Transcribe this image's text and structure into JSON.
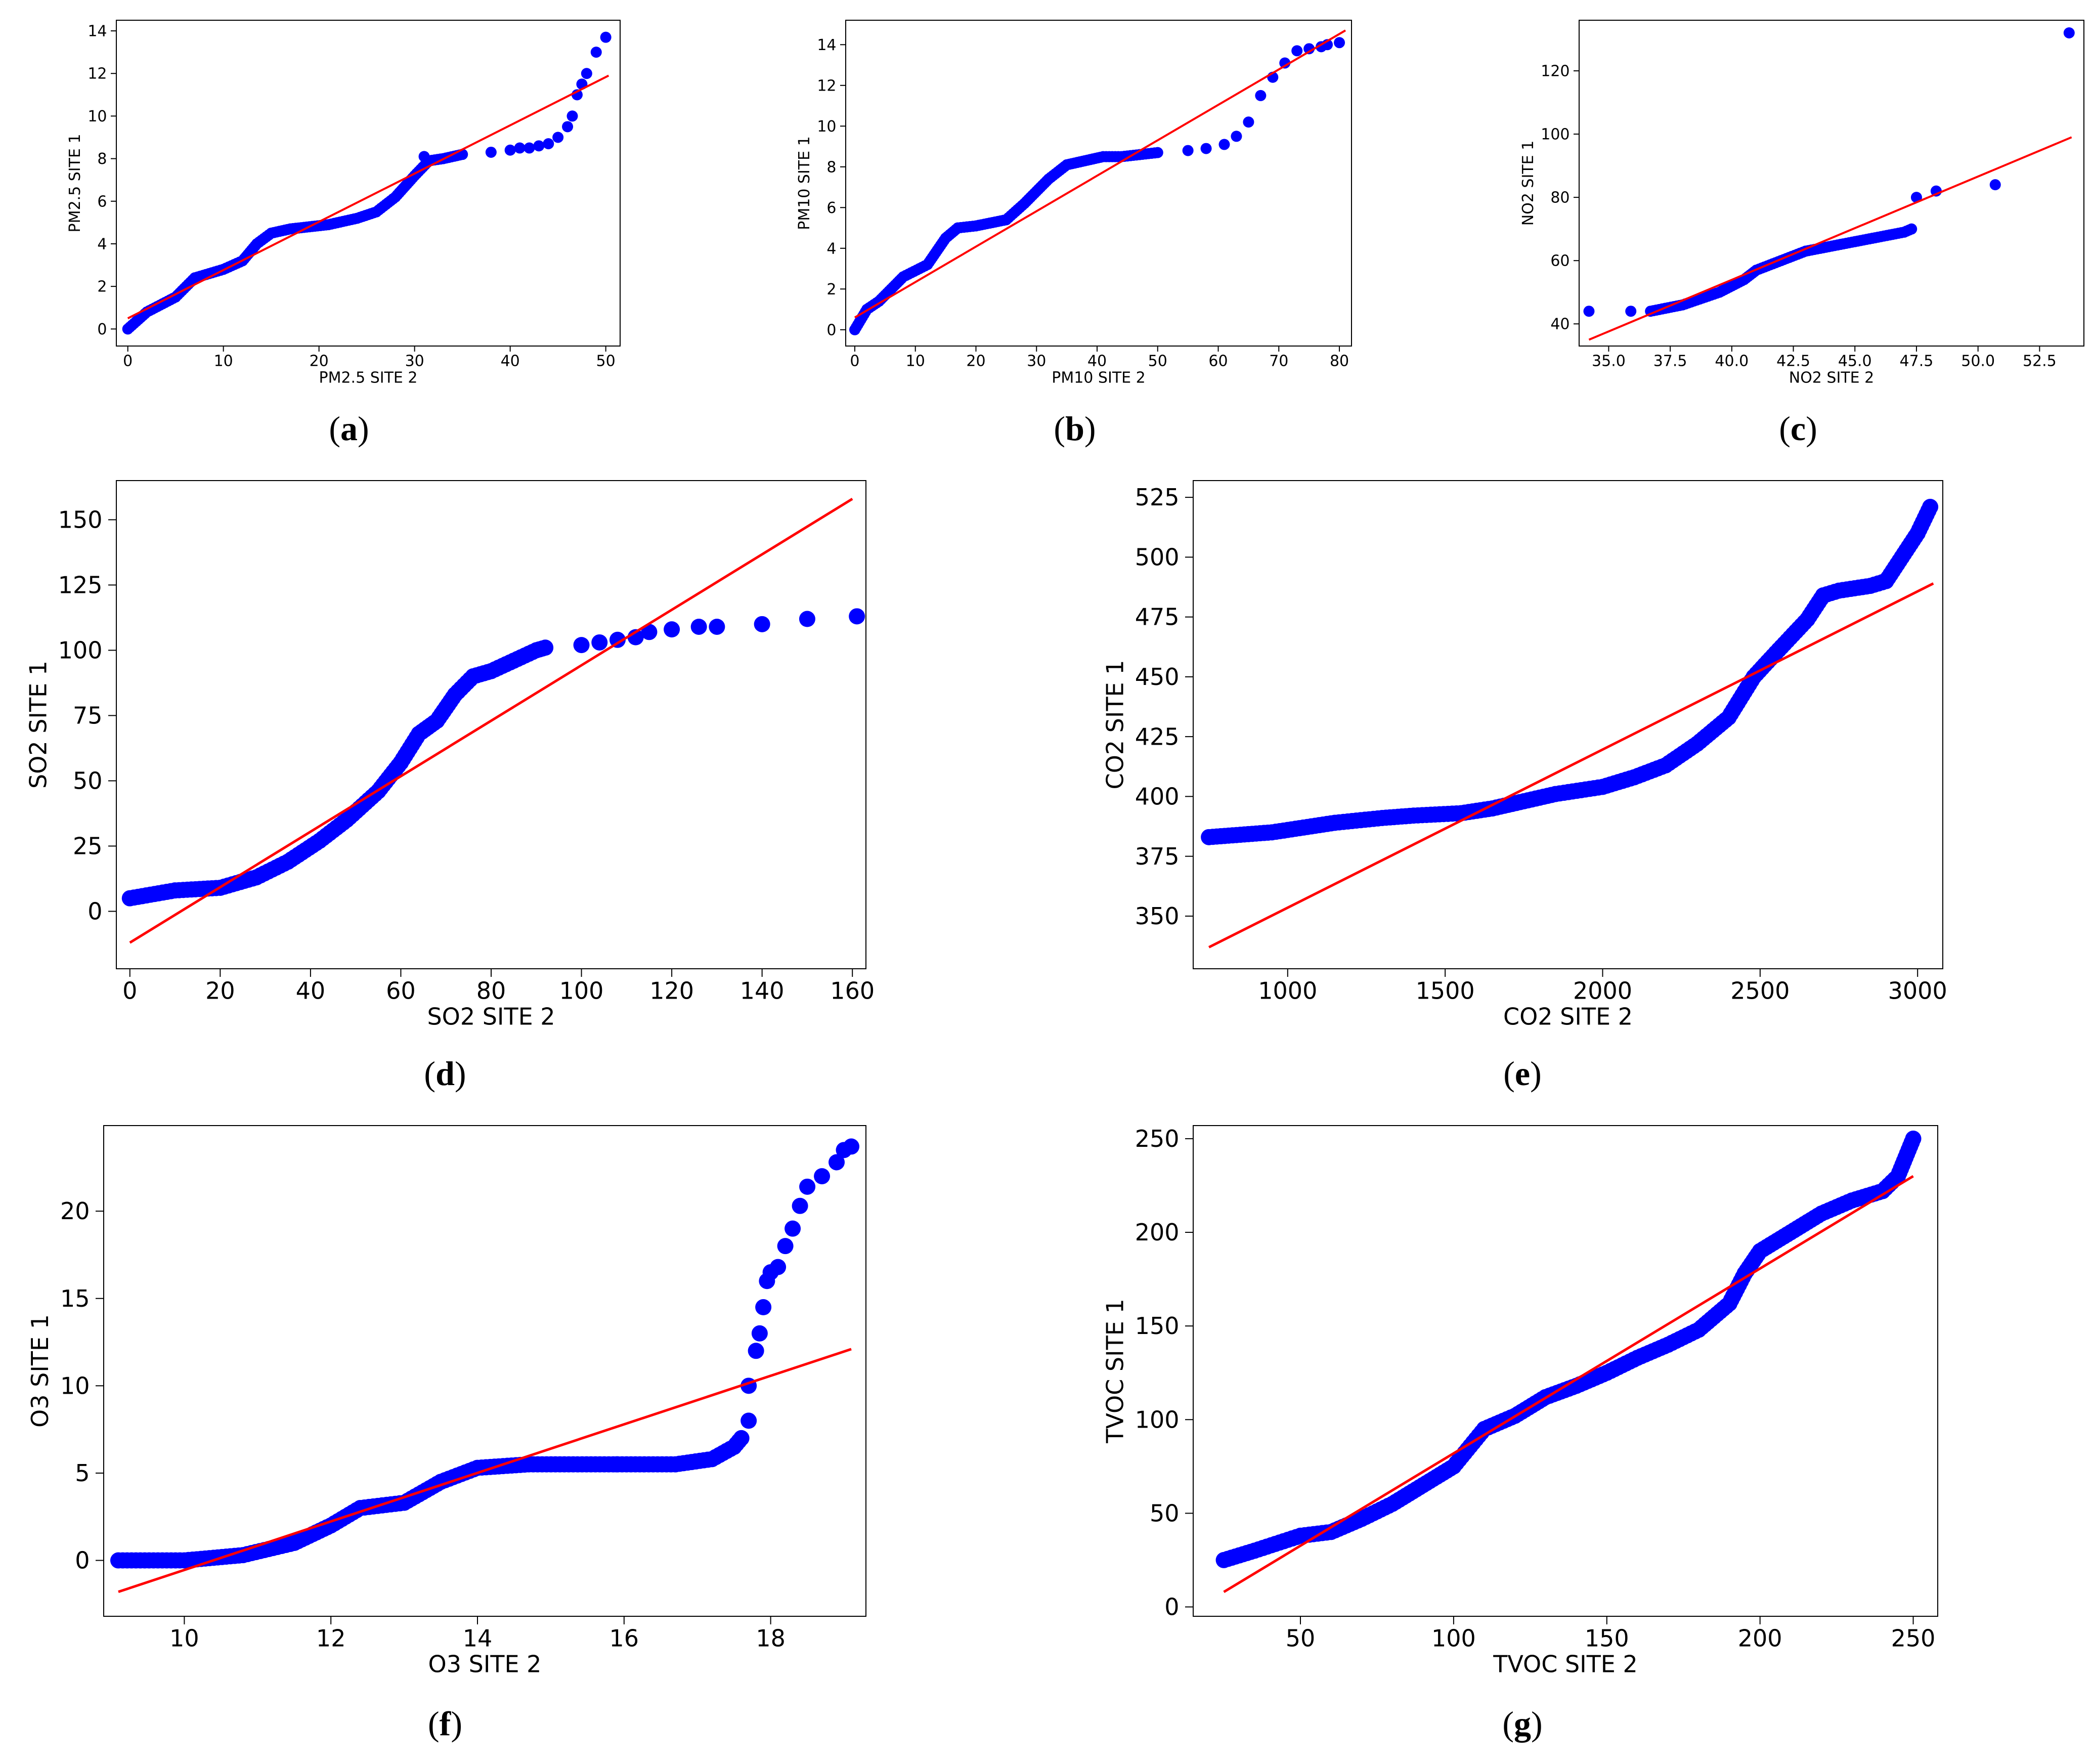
{
  "chart_data": [
    {
      "id": "a",
      "panel_label": "a",
      "type": "scatter",
      "xlabel": "PM2.5 SITE 2",
      "ylabel": "PM2.5 SITE 1",
      "xlim": [
        -1.2,
        51.5
      ],
      "ylim": [
        -0.8,
        14.5
      ],
      "xticks": [
        0,
        10,
        20,
        30,
        40,
        50
      ],
      "yticks": [
        0,
        2,
        4,
        6,
        8,
        10,
        12,
        14
      ],
      "fit_line": [
        [
          0,
          0.5
        ],
        [
          50.3,
          11.9
        ]
      ],
      "curve": [
        [
          0,
          0
        ],
        [
          2,
          0.8
        ],
        [
          5,
          1.5
        ],
        [
          7,
          2.4
        ],
        [
          10,
          2.8
        ],
        [
          12,
          3.2
        ],
        [
          13.5,
          4
        ],
        [
          15,
          4.5
        ],
        [
          17,
          4.7
        ],
        [
          19,
          4.8
        ],
        [
          21,
          4.9
        ],
        [
          24,
          5.2
        ],
        [
          26,
          5.5
        ],
        [
          28,
          6.2
        ],
        [
          30,
          7.2
        ],
        [
          31.5,
          7.9
        ],
        [
          33,
          8
        ],
        [
          35,
          8.2
        ]
      ],
      "scatter": [
        [
          31,
          8.1
        ],
        [
          35,
          8.2
        ],
        [
          38,
          8.3
        ],
        [
          40,
          8.4
        ],
        [
          41,
          8.5
        ],
        [
          42,
          8.5
        ],
        [
          43,
          8.6
        ],
        [
          44,
          8.7
        ],
        [
          45,
          9.0
        ],
        [
          46,
          9.5
        ],
        [
          46.5,
          10
        ],
        [
          47,
          11
        ],
        [
          47.5,
          11.5
        ],
        [
          48,
          12
        ],
        [
          49,
          13
        ],
        [
          50,
          13.7
        ]
      ]
    },
    {
      "id": "b",
      "panel_label": "b",
      "type": "scatter",
      "xlabel": "PM10 SITE 2",
      "ylabel": "PM10 SITE 1",
      "xlim": [
        -1.5,
        82
      ],
      "ylim": [
        -0.8,
        15.2
      ],
      "xticks": [
        0,
        10,
        20,
        30,
        40,
        50,
        60,
        70,
        80
      ],
      "yticks": [
        0,
        2,
        4,
        6,
        8,
        10,
        12,
        14
      ],
      "fit_line": [
        [
          0,
          0.6
        ],
        [
          81,
          14.7
        ]
      ],
      "curve": [
        [
          0,
          0
        ],
        [
          2,
          1
        ],
        [
          4,
          1.4
        ],
        [
          6,
          2
        ],
        [
          8,
          2.6
        ],
        [
          12,
          3.2
        ],
        [
          15,
          4.5
        ],
        [
          17,
          5
        ],
        [
          20,
          5.1
        ],
        [
          25,
          5.4
        ],
        [
          28,
          6.2
        ],
        [
          32,
          7.4
        ],
        [
          35,
          8.1
        ],
        [
          38,
          8.3
        ],
        [
          41,
          8.5
        ],
        [
          44,
          8.5
        ],
        [
          47,
          8.6
        ],
        [
          50,
          8.7
        ]
      ],
      "scatter": [
        [
          55,
          8.8
        ],
        [
          58,
          8.9
        ],
        [
          61,
          9.1
        ],
        [
          63,
          9.5
        ],
        [
          65,
          10.2
        ],
        [
          67,
          11.5
        ],
        [
          69,
          12.4
        ],
        [
          71,
          13.1
        ],
        [
          73,
          13.7
        ],
        [
          75,
          13.8
        ],
        [
          77,
          13.9
        ],
        [
          78,
          14.0
        ],
        [
          80,
          14.1
        ]
      ]
    },
    {
      "id": "c",
      "panel_label": "c",
      "type": "scatter",
      "xlabel": "NO2 SITE 2",
      "ylabel": "NO2 SITE 1",
      "xlim": [
        33.8,
        54.3
      ],
      "ylim": [
        33,
        136
      ],
      "xticks": [
        "35.0",
        "37.5",
        "40.0",
        "42.5",
        "45.0",
        "47.5",
        "50.0",
        "52.5"
      ],
      "yticks": [
        40,
        60,
        80,
        100,
        120
      ],
      "fit_line": [
        [
          34.2,
          35
        ],
        [
          53.8,
          99
        ]
      ],
      "curve": [
        [
          36.7,
          44
        ],
        [
          38,
          46
        ],
        [
          39.5,
          50
        ],
        [
          40.5,
          54
        ],
        [
          41,
          57
        ],
        [
          42,
          60
        ],
        [
          43,
          63
        ],
        [
          45,
          66
        ],
        [
          47,
          69
        ],
        [
          47.3,
          70
        ]
      ],
      "scatter": [
        [
          34.2,
          44
        ],
        [
          35.9,
          44
        ],
        [
          47.5,
          80
        ],
        [
          48.3,
          82
        ],
        [
          50.7,
          84
        ],
        [
          53.7,
          132
        ]
      ]
    },
    {
      "id": "d",
      "panel_label": "d",
      "type": "scatter",
      "xlabel": "SO2 SITE 2",
      "ylabel": "SO2 SITE 1",
      "xlim": [
        -3,
        163
      ],
      "ylim": [
        -22,
        165
      ],
      "xticks": [
        0,
        20,
        40,
        60,
        80,
        100,
        120,
        140,
        160
      ],
      "yticks": [
        0,
        25,
        50,
        75,
        100,
        125,
        150
      ],
      "fit_line": [
        [
          0,
          -12
        ],
        [
          160,
          158
        ]
      ],
      "curve": [
        [
          0,
          5
        ],
        [
          10,
          8
        ],
        [
          20,
          9
        ],
        [
          28,
          13
        ],
        [
          35,
          19
        ],
        [
          42,
          27
        ],
        [
          48,
          35
        ],
        [
          55,
          46
        ],
        [
          60,
          57
        ],
        [
          64,
          68
        ],
        [
          68,
          73
        ],
        [
          72,
          83
        ],
        [
          76,
          90
        ],
        [
          80,
          92
        ],
        [
          85,
          96
        ],
        [
          90,
          100
        ],
        [
          92,
          101
        ]
      ],
      "scatter": [
        [
          100,
          102
        ],
        [
          104,
          103
        ],
        [
          108,
          104
        ],
        [
          112,
          105
        ],
        [
          115,
          107
        ],
        [
          120,
          108
        ],
        [
          126,
          109
        ],
        [
          130,
          109
        ],
        [
          140,
          110
        ],
        [
          150,
          112
        ],
        [
          161,
          113
        ]
      ]
    },
    {
      "id": "e",
      "panel_label": "e",
      "type": "scatter",
      "xlabel": "CO2 SITE 2",
      "ylabel": "CO2 SITE 1",
      "xlim": [
        700,
        3080
      ],
      "ylim": [
        328,
        532
      ],
      "xticks": [
        1000,
        1500,
        2000,
        2500,
        3000
      ],
      "yticks": [
        350,
        375,
        400,
        425,
        450,
        475,
        500,
        525
      ],
      "fit_line": [
        [
          750,
          337
        ],
        [
          3050,
          489
        ]
      ],
      "curve": [
        [
          750,
          383
        ],
        [
          850,
          384
        ],
        [
          950,
          385
        ],
        [
          1050,
          387
        ],
        [
          1150,
          389
        ],
        [
          1300,
          391
        ],
        [
          1400,
          392
        ],
        [
          1550,
          393
        ],
        [
          1650,
          395
        ],
        [
          1750,
          398
        ],
        [
          1850,
          401
        ],
        [
          2000,
          404
        ],
        [
          2100,
          408
        ],
        [
          2200,
          413
        ],
        [
          2300,
          422
        ],
        [
          2400,
          433
        ],
        [
          2480,
          450
        ],
        [
          2550,
          460
        ],
        [
          2650,
          474
        ],
        [
          2700,
          484
        ],
        [
          2750,
          486
        ],
        [
          2850,
          488
        ],
        [
          2900,
          490
        ],
        [
          2950,
          500
        ],
        [
          3000,
          510
        ],
        [
          3040,
          521
        ]
      ],
      "scatter": []
    },
    {
      "id": "f",
      "panel_label": "f",
      "type": "scatter",
      "xlabel": "O3 SITE 2",
      "ylabel": "O3 SITE 1",
      "xlim": [
        8.9,
        19.3
      ],
      "ylim": [
        -3.2,
        24.9
      ],
      "xticks": [
        10,
        12,
        14,
        16,
        18
      ],
      "yticks": [
        0,
        5,
        10,
        15,
        20
      ],
      "fit_line": [
        [
          9.1,
          -1.8
        ],
        [
          19.1,
          12.1
        ]
      ],
      "curve": [
        [
          9.1,
          0
        ],
        [
          10,
          0
        ],
        [
          10.8,
          0.3
        ],
        [
          11.5,
          1
        ],
        [
          12,
          2
        ],
        [
          12.4,
          3
        ],
        [
          13,
          3.3
        ],
        [
          13.5,
          4.5
        ],
        [
          14,
          5.3
        ],
        [
          14.7,
          5.5
        ],
        [
          16.7,
          5.5
        ],
        [
          17.2,
          5.8
        ],
        [
          17.5,
          6.5
        ],
        [
          17.6,
          7
        ]
      ],
      "scatter": [
        [
          15.9,
          5.5
        ],
        [
          17.7,
          8
        ],
        [
          17.7,
          10
        ],
        [
          17.8,
          12
        ],
        [
          17.85,
          13
        ],
        [
          17.9,
          14.5
        ],
        [
          17.95,
          16
        ],
        [
          18.0,
          16.5
        ],
        [
          18.1,
          16.8
        ],
        [
          18.2,
          18
        ],
        [
          18.3,
          19
        ],
        [
          18.4,
          20.3
        ],
        [
          18.5,
          21.4
        ],
        [
          18.7,
          22
        ],
        [
          18.9,
          22.8
        ],
        [
          19.0,
          23.5
        ],
        [
          19.1,
          23.7
        ]
      ]
    },
    {
      "id": "g",
      "panel_label": "g",
      "type": "scatter",
      "xlabel": "TVOC SITE 2",
      "ylabel": "TVOC SITE 1",
      "xlim": [
        15,
        258
      ],
      "ylim": [
        -5,
        257
      ],
      "xticks": [
        50,
        100,
        150,
        200,
        250
      ],
      "yticks": [
        0,
        50,
        100,
        150,
        200,
        250
      ],
      "fit_line": [
        [
          25,
          8
        ],
        [
          250,
          230
        ]
      ],
      "curve": [
        [
          25,
          25
        ],
        [
          35,
          30
        ],
        [
          50,
          38
        ],
        [
          60,
          40
        ],
        [
          70,
          47
        ],
        [
          80,
          55
        ],
        [
          90,
          65
        ],
        [
          100,
          75
        ],
        [
          110,
          95
        ],
        [
          120,
          102
        ],
        [
          130,
          112
        ],
        [
          140,
          118
        ],
        [
          150,
          125
        ],
        [
          160,
          133
        ],
        [
          170,
          140
        ],
        [
          180,
          148
        ],
        [
          190,
          162
        ],
        [
          195,
          178
        ],
        [
          200,
          190
        ],
        [
          210,
          200
        ],
        [
          220,
          210
        ],
        [
          230,
          217
        ],
        [
          240,
          222
        ],
        [
          245,
          230
        ],
        [
          250,
          250
        ]
      ],
      "scatter": []
    }
  ]
}
